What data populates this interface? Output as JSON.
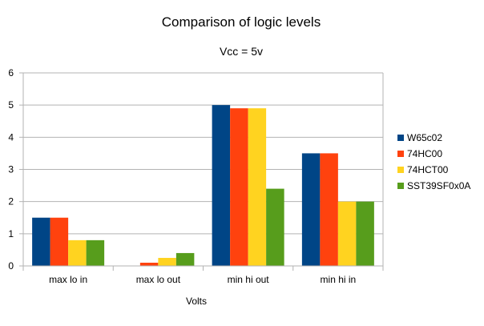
{
  "chart_data": {
    "type": "bar",
    "title": "Comparison of logic levels",
    "subtitle": "Vcc = 5v",
    "xlabel": "Volts",
    "ylabel": "",
    "ylim": [
      0,
      6
    ],
    "yticks": [
      "0",
      "1",
      "2",
      "3",
      "4",
      "5",
      "6"
    ],
    "categories": [
      "max lo in",
      "max lo out",
      "min hi out",
      "min hi in"
    ],
    "series": [
      {
        "name": "W65c02",
        "color": "#004586",
        "values": [
          1.5,
          0,
          5.0,
          3.5
        ]
      },
      {
        "name": "74HC00",
        "color": "#ff420e",
        "values": [
          1.5,
          0.1,
          4.9,
          3.5
        ]
      },
      {
        "name": "74HCT00",
        "color": "#ffd320",
        "values": [
          0.8,
          0.25,
          4.9,
          2.0
        ]
      },
      {
        "name": "SST39SF0x0A",
        "color": "#579d1c",
        "values": [
          0.8,
          0.4,
          2.4,
          2.0
        ]
      }
    ],
    "grid": true,
    "legend_position": "right"
  }
}
